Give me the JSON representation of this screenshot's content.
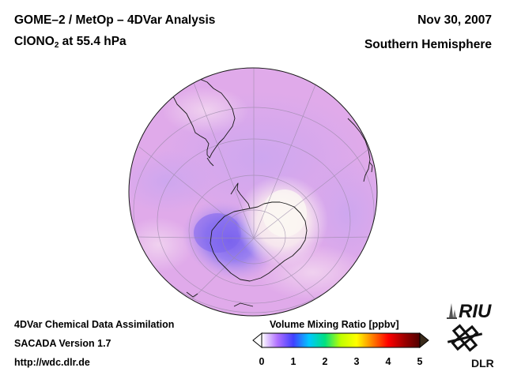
{
  "header": {
    "title_line1": "GOME–2 / MetOp – 4DVar Analysis",
    "species_main": "ClONO",
    "species_sub": "2",
    "species_rest": " at 55.4 hPa",
    "date": "Nov 30, 2007",
    "region": "Southern Hemisphere"
  },
  "footer": {
    "line1": "4DVar Chemical Data Assimilation",
    "line2": "SACADA Version 1.7",
    "line3": "http://wdc.dlr.de"
  },
  "colorbar": {
    "title": "Volume Mixing Ratio [ppbv]",
    "ticks": [
      "0",
      "1",
      "2",
      "3",
      "4",
      "5"
    ],
    "colors": [
      "#ffffff",
      "#b070ff",
      "#4040ff",
      "#00c8ff",
      "#00e080",
      "#c0ff00",
      "#ffff00",
      "#ff8000",
      "#ff0000",
      "#a00000",
      "#500000"
    ],
    "low_end_color": "#ffffff",
    "high_end_color": "#3a2a1a"
  },
  "logos": {
    "riu": "RIU",
    "dlr": "DLR"
  },
  "map": {
    "projection": "orthographic, south pole view",
    "background_color": "#e0aaea",
    "low_value_color": "#7a66ee",
    "high_value_color": "#faf4f0"
  }
}
